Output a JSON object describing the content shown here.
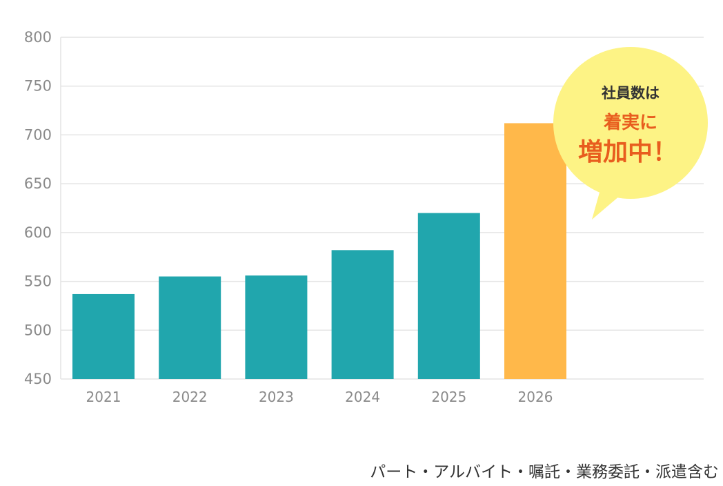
{
  "chart_data": {
    "type": "bar",
    "categories": [
      "2021",
      "2022",
      "2023",
      "2024",
      "2025",
      "2026"
    ],
    "values": [
      537,
      555,
      556,
      582,
      620,
      712
    ],
    "highlight_index": 5,
    "ylim": [
      450,
      800
    ],
    "yticks": [
      450,
      500,
      550,
      600,
      650,
      700,
      750,
      800
    ],
    "grid": true,
    "colors": {
      "bar": "#21a6ad",
      "highlight": "#ffb84a",
      "grid": "#e4e4e4",
      "bubble": "#fdf385"
    }
  },
  "callout": {
    "line1": "社員数は",
    "line2": "着実に",
    "line3": "増加中！"
  },
  "footnote": "パート・アルバイト・嘱託・業務委託・派遣含む"
}
